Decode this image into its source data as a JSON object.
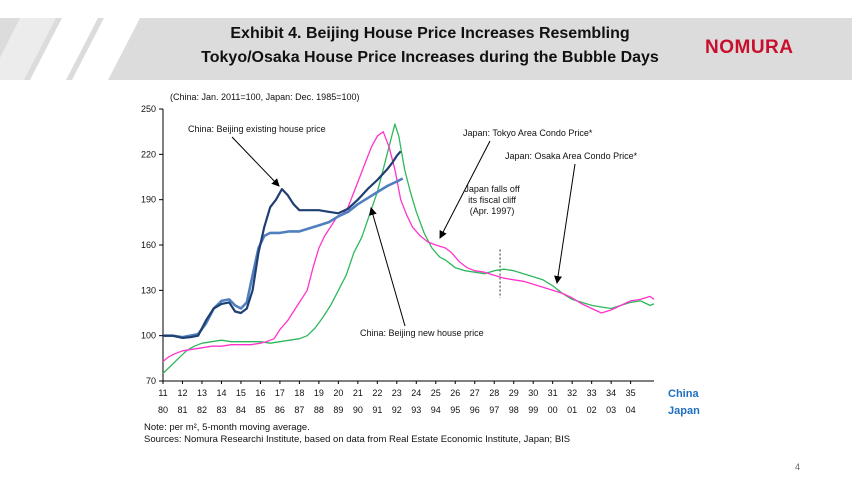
{
  "header": {
    "title_line1": "Exhibit 4. Beijing House Price Increases Resembling",
    "title_line2": "Tokyo/Osaka House Price Increases during the Bubble Days",
    "logo": "NOMURA"
  },
  "page_number": "4",
  "footnote": "Note: per m², 5-month moving average.",
  "sources": "Sources: Nomura Researchi Institute, based on data from Real Estate Economic Institute, Japan; BIS",
  "chart_data": {
    "type": "line",
    "subtitle": "(China: Jan. 2011=100, Japan: Dec. 1985=100)",
    "ylim": [
      70,
      250
    ],
    "yticks": [
      70,
      100,
      130,
      160,
      190,
      220,
      250
    ],
    "grid": false,
    "x_axis_china": {
      "name": "China",
      "ticks": [
        "11",
        "12",
        "13",
        "14",
        "15",
        "16",
        "17",
        "18",
        "19",
        "20",
        "21",
        "22",
        "23",
        "24",
        "25",
        "26",
        "27",
        "28",
        "29",
        "30",
        "31",
        "32",
        "33",
        "34",
        "35"
      ]
    },
    "x_axis_japan": {
      "name": "Japan",
      "ticks": [
        "80",
        "81",
        "82",
        "83",
        "84",
        "85",
        "86",
        "87",
        "88",
        "89",
        "90",
        "91",
        "92",
        "93",
        "94",
        "95",
        "96",
        "97",
        "98",
        "99",
        "00",
        "01",
        "02",
        "03",
        "04"
      ]
    },
    "colors": {
      "beijing_existing": "#1f3f73",
      "beijing_new": "#4f7fbf",
      "tokyo": "#ff33cc",
      "osaka": "#2eb85c"
    },
    "series": [
      {
        "key": "beijing_existing",
        "name": "China: Beijing existing house price",
        "points": [
          [
            11,
            100
          ],
          [
            11.5,
            100
          ],
          [
            12,
            98.5
          ],
          [
            12.4,
            99
          ],
          [
            12.8,
            100
          ],
          [
            13.2,
            110
          ],
          [
            13.6,
            118
          ],
          [
            14,
            121
          ],
          [
            14.4,
            122
          ],
          [
            14.7,
            116
          ],
          [
            15,
            115
          ],
          [
            15.3,
            118
          ],
          [
            15.6,
            130
          ],
          [
            15.9,
            155
          ],
          [
            16.2,
            172
          ],
          [
            16.5,
            185
          ],
          [
            16.8,
            190
          ],
          [
            17.1,
            197
          ],
          [
            17.4,
            193
          ],
          [
            17.7,
            187
          ],
          [
            18,
            183
          ],
          [
            18.5,
            183
          ],
          [
            19,
            183
          ],
          [
            19.5,
            182
          ],
          [
            20,
            181
          ],
          [
            20.5,
            184
          ],
          [
            21,
            190
          ],
          [
            21.5,
            197
          ],
          [
            22,
            203
          ],
          [
            22.5,
            210
          ],
          [
            22.8,
            215
          ],
          [
            23,
            219
          ],
          [
            23.2,
            222
          ]
        ]
      },
      {
        "key": "beijing_new",
        "name": "China: Beijing new house price",
        "points": [
          [
            11,
            100
          ],
          [
            11.5,
            100
          ],
          [
            12,
            99
          ],
          [
            12.4,
            100
          ],
          [
            12.8,
            101
          ],
          [
            13.2,
            108
          ],
          [
            13.6,
            118
          ],
          [
            14,
            123
          ],
          [
            14.4,
            124
          ],
          [
            14.7,
            120
          ],
          [
            15,
            118
          ],
          [
            15.3,
            122
          ],
          [
            15.6,
            140
          ],
          [
            15.9,
            158
          ],
          [
            16.2,
            166
          ],
          [
            16.5,
            168
          ],
          [
            17,
            168
          ],
          [
            17.5,
            169
          ],
          [
            18,
            169
          ],
          [
            18.5,
            171
          ],
          [
            19,
            173
          ],
          [
            19.5,
            175
          ],
          [
            20,
            179
          ],
          [
            20.5,
            182
          ],
          [
            21,
            187
          ],
          [
            21.5,
            191
          ],
          [
            22,
            195
          ],
          [
            22.5,
            199
          ],
          [
            23,
            202
          ],
          [
            23.3,
            204
          ]
        ]
      },
      {
        "key": "tokyo",
        "name": "Japan: Tokyo Area Condo Price*",
        "points": [
          [
            11,
            83
          ],
          [
            11.3,
            86
          ],
          [
            11.6,
            88
          ],
          [
            12,
            90
          ],
          [
            12.5,
            91
          ],
          [
            13,
            92
          ],
          [
            13.5,
            93
          ],
          [
            14,
            93
          ],
          [
            14.5,
            94
          ],
          [
            15,
            94
          ],
          [
            15.5,
            94
          ],
          [
            16,
            95
          ],
          [
            16.3,
            96
          ],
          [
            16.7,
            98
          ],
          [
            17,
            104
          ],
          [
            17.4,
            110
          ],
          [
            17.7,
            116
          ],
          [
            18,
            122
          ],
          [
            18.4,
            130
          ],
          [
            18.7,
            145
          ],
          [
            19,
            158
          ],
          [
            19.3,
            166
          ],
          [
            19.6,
            172
          ],
          [
            19.9,
            178
          ],
          [
            20.2,
            180
          ],
          [
            20.5,
            185
          ],
          [
            20.8,
            195
          ],
          [
            21.1,
            205
          ],
          [
            21.4,
            215
          ],
          [
            21.7,
            225
          ],
          [
            22,
            232
          ],
          [
            22.3,
            235
          ],
          [
            22.6,
            225
          ],
          [
            22.9,
            210
          ],
          [
            23.2,
            190
          ],
          [
            23.5,
            180
          ],
          [
            23.8,
            172
          ],
          [
            24.2,
            166
          ],
          [
            24.6,
            162
          ],
          [
            25,
            160
          ],
          [
            25.5,
            158
          ],
          [
            25.8,
            155
          ],
          [
            26.2,
            149
          ],
          [
            26.6,
            145
          ],
          [
            27,
            143
          ],
          [
            27.5,
            142
          ],
          [
            28,
            140
          ],
          [
            28.5,
            138
          ],
          [
            29,
            137
          ],
          [
            29.5,
            136
          ],
          [
            30,
            134
          ],
          [
            30.5,
            132
          ],
          [
            31,
            130
          ],
          [
            31.5,
            128
          ],
          [
            32,
            125
          ],
          [
            32.5,
            121
          ],
          [
            33,
            118
          ],
          [
            33.5,
            115
          ],
          [
            34,
            117
          ],
          [
            34.5,
            120
          ],
          [
            35,
            123
          ],
          [
            35.5,
            124
          ],
          [
            36,
            126
          ],
          [
            36.2,
            124
          ]
        ]
      },
      {
        "key": "osaka",
        "name": "Japan: Osaka Area Condo Price*",
        "points": [
          [
            11,
            75
          ],
          [
            11.4,
            80
          ],
          [
            11.8,
            85
          ],
          [
            12.2,
            90
          ],
          [
            12.6,
            93
          ],
          [
            13,
            95
          ],
          [
            13.5,
            96
          ],
          [
            14,
            97
          ],
          [
            14.5,
            96
          ],
          [
            15,
            96
          ],
          [
            15.5,
            96
          ],
          [
            16,
            96
          ],
          [
            16.5,
            95
          ],
          [
            17,
            96
          ],
          [
            17.5,
            97
          ],
          [
            18,
            98
          ],
          [
            18.4,
            100
          ],
          [
            18.8,
            105
          ],
          [
            19.2,
            112
          ],
          [
            19.6,
            120
          ],
          [
            20,
            130
          ],
          [
            20.4,
            140
          ],
          [
            20.8,
            155
          ],
          [
            21.2,
            165
          ],
          [
            21.6,
            180
          ],
          [
            22,
            195
          ],
          [
            22.3,
            210
          ],
          [
            22.6,
            225
          ],
          [
            22.9,
            240
          ],
          [
            23.1,
            232
          ],
          [
            23.4,
            210
          ],
          [
            23.7,
            195
          ],
          [
            24,
            182
          ],
          [
            24.4,
            168
          ],
          [
            24.8,
            158
          ],
          [
            25.2,
            152
          ],
          [
            25.5,
            150
          ],
          [
            26,
            145
          ],
          [
            26.5,
            143
          ],
          [
            27,
            142
          ],
          [
            27.5,
            141
          ],
          [
            28,
            143
          ],
          [
            28.5,
            144
          ],
          [
            29,
            143
          ],
          [
            29.5,
            141
          ],
          [
            30,
            139
          ],
          [
            30.5,
            137
          ],
          [
            31,
            133
          ],
          [
            31.5,
            128
          ],
          [
            32,
            124
          ],
          [
            32.5,
            122
          ],
          [
            33,
            120
          ],
          [
            33.5,
            119
          ],
          [
            34,
            118
          ],
          [
            34.5,
            120
          ],
          [
            35,
            122
          ],
          [
            35.5,
            123
          ],
          [
            36,
            120
          ],
          [
            36.2,
            121
          ]
        ]
      }
    ],
    "annotations": [
      {
        "text": "China: Beijing existing  house price"
      },
      {
        "text": "Japan: Tokyo Area Condo Price*"
      },
      {
        "text": "Japan: Osaka Area Condo Price*"
      },
      {
        "text": "China: Beijing new house price"
      },
      {
        "text_lines": [
          "Japan falls off",
          "its fiscal cliff",
          "(Apr. 1997)"
        ]
      }
    ],
    "vertical_marker_x": 28.3
  }
}
